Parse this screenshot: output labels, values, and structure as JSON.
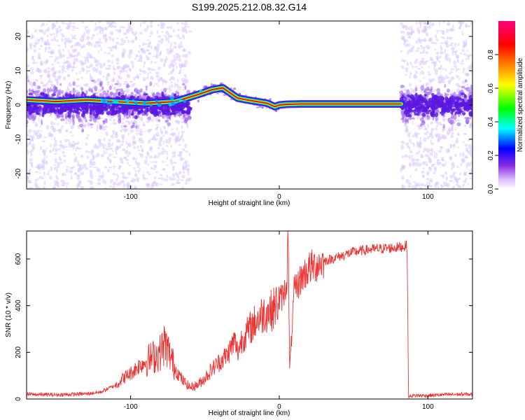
{
  "title": "S199.2025.212.08.32.G14",
  "chart_data": [
    {
      "type": "heatmap",
      "xlabel": "Height of straight line (km)",
      "ylabel": "Frequency (Hz)",
      "xlim": [
        -170,
        130
      ],
      "ylim": [
        -24.5,
        24.5
      ],
      "xticks": [
        -100,
        0,
        100
      ],
      "yticks": [
        -20,
        -10,
        0,
        10,
        20
      ],
      "colorbar": {
        "label": "Normalized spectral amplitude",
        "range": [
          0.0,
          1.0
        ],
        "ticks": [
          "0.0",
          "0.2",
          "0.4",
          "0.6",
          "0.8"
        ],
        "colors": [
          "#ffffff",
          "#8a2be2",
          "#0000ff",
          "#00ffff",
          "#00ff00",
          "#ffff00",
          "#ff8000",
          "#ff0000",
          "#ff0080"
        ]
      },
      "ridge": {
        "x": [
          -170,
          -150,
          -130,
          -110,
          -90,
          -70,
          -55,
          -45,
          -38,
          -33,
          -28,
          -22,
          -15,
          -8,
          -3,
          0,
          5,
          15,
          30,
          50,
          70,
          82
        ],
        "frequency": [
          1.5,
          1.0,
          1.5,
          1.0,
          0.5,
          1.0,
          3.0,
          4.5,
          5.0,
          3.5,
          2.0,
          1.5,
          1.0,
          0.5,
          -0.5,
          0.0,
          0.2,
          0.3,
          0.3,
          0.3,
          0.3,
          0.3
        ]
      },
      "noise_regions": [
        [
          -170,
          -60
        ],
        [
          82,
          130
        ]
      ]
    },
    {
      "type": "line",
      "xlabel": "Height of straight line (km)",
      "ylabel": "SNR (10 * v/v)",
      "xlim": [
        -170,
        130
      ],
      "ylim": [
        0,
        720
      ],
      "xticks": [
        -100,
        0,
        100
      ],
      "yticks": [
        0,
        200,
        400,
        600
      ],
      "color": "#ee3333",
      "series": [
        {
          "x": [
            -170,
            -150,
            -130,
            -120,
            -110,
            -105,
            -100,
            -95,
            -90,
            -85,
            -80,
            -77,
            -75,
            -70,
            -65,
            -60,
            -55,
            -50,
            -45,
            -40,
            -35,
            -30,
            -28,
            -25,
            -22,
            -20,
            -15,
            -10,
            -5,
            0,
            3,
            5,
            6,
            7,
            10,
            15,
            20,
            30,
            40,
            50,
            60,
            70,
            80,
            85,
            86,
            87,
            90,
            100,
            110,
            120,
            130
          ],
          "values": [
            20,
            18,
            22,
            30,
            60,
            90,
            110,
            140,
            160,
            180,
            200,
            240,
            210,
            130,
            80,
            50,
            60,
            90,
            130,
            160,
            190,
            250,
            200,
            260,
            280,
            300,
            340,
            370,
            380,
            420,
            450,
            500,
            700,
            120,
            460,
            520,
            560,
            590,
            610,
            630,
            640,
            645,
            650,
            655,
            660,
            10,
            15,
            15,
            18,
            20,
            20
          ]
        }
      ]
    }
  ]
}
